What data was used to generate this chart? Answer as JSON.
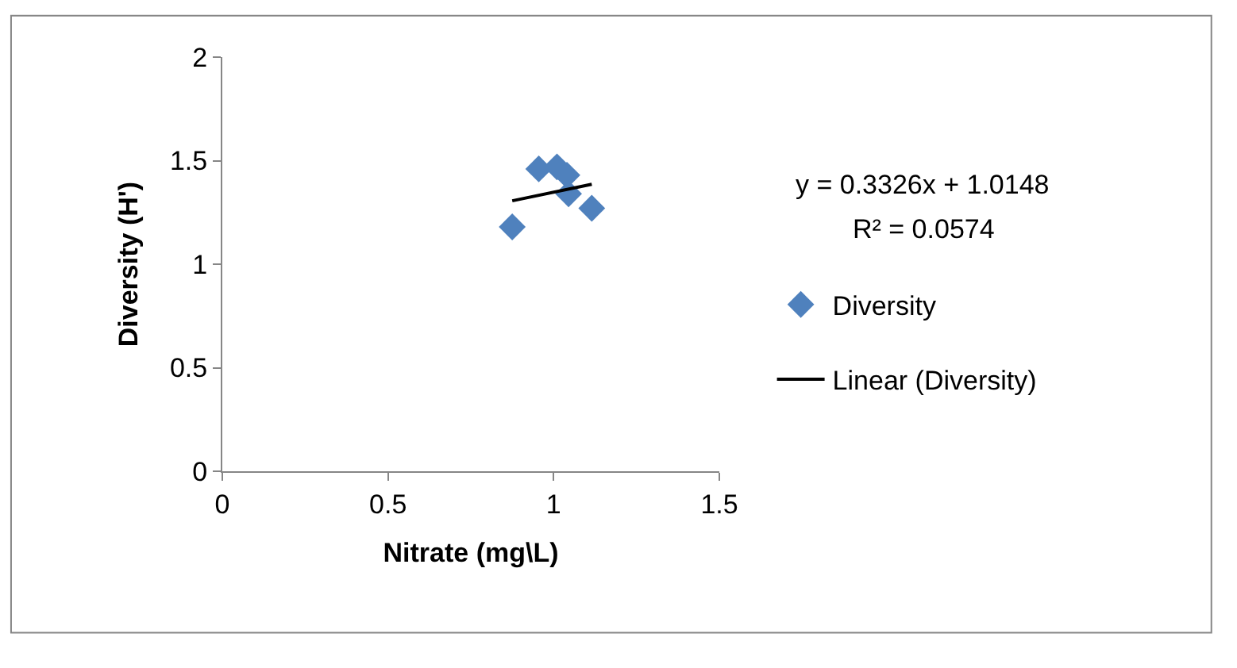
{
  "chart_data": {
    "type": "scatter",
    "xlabel": "Nitrate (mg\\L)",
    "ylabel": "Diversity (H')",
    "xlim": [
      0,
      1.5
    ],
    "xticks": [
      0,
      0.5,
      1,
      1.5
    ],
    "ylim": [
      0,
      2
    ],
    "yticks": [
      0,
      0.5,
      1,
      1.5,
      2
    ],
    "grid": false,
    "legend": "right",
    "marker": "diamond",
    "annotations": [
      "y = 0.3326x + 1.0148",
      "R² = 0.0574"
    ],
    "series": [
      {
        "name": "Diversity",
        "type": "scatter",
        "color": "#4f81bd",
        "x": [
          0.875,
          0.955,
          1.01,
          1.04,
          1.045,
          1.115
        ],
        "values": [
          1.18,
          1.46,
          1.47,
          1.43,
          1.34,
          1.27
        ]
      },
      {
        "name": "Linear (Diversity)",
        "type": "line",
        "color": "#000000",
        "line_style": "solid",
        "marker": "none",
        "x": [
          0.875,
          1.115
        ],
        "values": [
          1.306,
          1.386
        ]
      }
    ]
  }
}
